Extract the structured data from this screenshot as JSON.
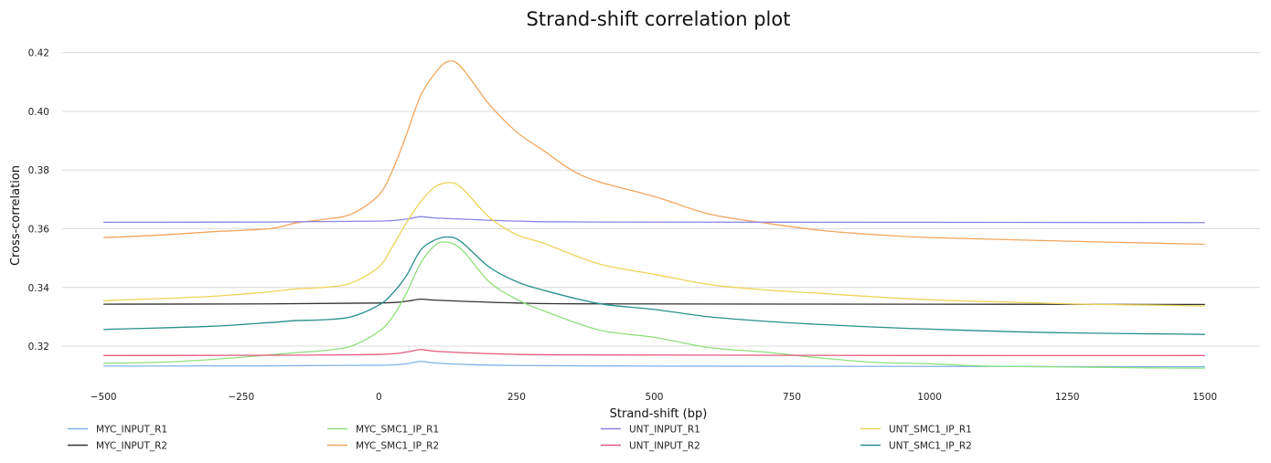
{
  "chart_data": {
    "type": "line",
    "title": "Strand-shift correlation plot",
    "xlabel": "Strand-shift (bp)",
    "ylabel": "Cross-correlation",
    "xlim": [
      -575,
      1600
    ],
    "ylim": [
      0.3085,
      0.4255
    ],
    "xticks": [
      -500,
      -250,
      0,
      250,
      500,
      750,
      1000,
      1250,
      1500
    ],
    "xtick_labels": [
      "−500",
      "−250",
      "0",
      "250",
      "500",
      "750",
      "1000",
      "1250",
      "1500"
    ],
    "yticks": [
      0.32,
      0.34,
      0.36,
      0.38,
      0.4,
      0.42
    ],
    "ytick_labels": [
      "0.32",
      "0.34",
      "0.36",
      "0.38",
      "0.40",
      "0.42"
    ],
    "grid": "horizontal",
    "legend_position": "bottom",
    "series": [
      {
        "name": "MYC_INPUT_R1",
        "color": "#7eb4e8",
        "x": [
          -500,
          -200,
          0,
          50,
          75,
          100,
          150,
          250,
          500,
          1000,
          1500
        ],
        "y": [
          0.3132,
          0.3133,
          0.3135,
          0.314,
          0.3148,
          0.3143,
          0.3138,
          0.3134,
          0.3132,
          0.3131,
          0.313
        ]
      },
      {
        "name": "MYC_INPUT_R2",
        "color": "#333333",
        "x": [
          -500,
          -200,
          0,
          50,
          75,
          100,
          150,
          250,
          400,
          1000,
          1500
        ],
        "y": [
          0.3343,
          0.3344,
          0.3347,
          0.3353,
          0.336,
          0.3357,
          0.3353,
          0.3347,
          0.3344,
          0.3343,
          0.3342
        ]
      },
      {
        "name": "MYC_SMC1_IP_R1",
        "color": "#8ee07a",
        "x": [
          -500,
          -400,
          -300,
          -200,
          -150,
          -100,
          -50,
          0,
          25,
          50,
          75,
          100,
          120,
          150,
          200,
          250,
          300,
          400,
          500,
          600,
          700,
          800,
          900,
          1000,
          1100,
          1200,
          1300,
          1400,
          1500
        ],
        "y": [
          0.3142,
          0.3145,
          0.3155,
          0.317,
          0.3178,
          0.3185,
          0.32,
          0.325,
          0.33,
          0.338,
          0.348,
          0.354,
          0.3555,
          0.353,
          0.342,
          0.336,
          0.332,
          0.3255,
          0.323,
          0.3195,
          0.318,
          0.316,
          0.3145,
          0.314,
          0.3132,
          0.313,
          0.3128,
          0.3126,
          0.3125
        ]
      },
      {
        "name": "MYC_SMC1_IP_R2",
        "color": "#f2a55c",
        "x": [
          -500,
          -400,
          -300,
          -200,
          -150,
          -100,
          -50,
          0,
          25,
          50,
          75,
          100,
          125,
          150,
          200,
          250,
          300,
          350,
          400,
          500,
          600,
          700,
          800,
          900,
          1000,
          1200,
          1500
        ],
        "y": [
          0.357,
          0.3578,
          0.359,
          0.36,
          0.362,
          0.3632,
          0.365,
          0.3715,
          0.38,
          0.392,
          0.405,
          0.4125,
          0.417,
          0.415,
          0.4025,
          0.393,
          0.3865,
          0.38,
          0.376,
          0.371,
          0.365,
          0.362,
          0.3595,
          0.358,
          0.357,
          0.356,
          0.3547
        ]
      },
      {
        "name": "UNT_INPUT_R1",
        "color": "#8a86e2",
        "x": [
          -500,
          -200,
          0,
          50,
          75,
          100,
          150,
          250,
          400,
          1000,
          1500
        ],
        "y": [
          0.3622,
          0.3623,
          0.3626,
          0.3633,
          0.3641,
          0.3637,
          0.3633,
          0.3626,
          0.3623,
          0.3622,
          0.3621
        ]
      },
      {
        "name": "UNT_INPUT_R2",
        "color": "#e45a7c",
        "x": [
          -500,
          -200,
          0,
          50,
          75,
          100,
          150,
          250,
          400,
          1000,
          1500
        ],
        "y": [
          0.3168,
          0.3169,
          0.3172,
          0.318,
          0.3188,
          0.3183,
          0.3178,
          0.3172,
          0.317,
          0.3168,
          0.3168
        ]
      },
      {
        "name": "UNT_SMC1_IP_R1",
        "color": "#eed358",
        "x": [
          -500,
          -400,
          -300,
          -200,
          -150,
          -100,
          -50,
          0,
          25,
          50,
          75,
          100,
          125,
          150,
          200,
          250,
          300,
          400,
          500,
          600,
          700,
          800,
          900,
          1000,
          1100,
          1200,
          1300,
          1400,
          1500
        ],
        "y": [
          0.3355,
          0.3362,
          0.337,
          0.3385,
          0.3395,
          0.34,
          0.3415,
          0.347,
          0.354,
          0.362,
          0.369,
          0.374,
          0.3757,
          0.374,
          0.364,
          0.358,
          0.355,
          0.348,
          0.3445,
          0.341,
          0.3392,
          0.338,
          0.3368,
          0.3358,
          0.3352,
          0.3347,
          0.3342,
          0.334,
          0.3337
        ]
      },
      {
        "name": "UNT_SMC1_IP_R2",
        "color": "#27908a",
        "x": [
          -500,
          -400,
          -300,
          -200,
          -150,
          -100,
          -50,
          0,
          25,
          50,
          75,
          100,
          125,
          150,
          200,
          250,
          300,
          400,
          500,
          600,
          700,
          800,
          900,
          1000,
          1100,
          1200,
          1300,
          1400,
          1500
        ],
        "y": [
          0.3257,
          0.3262,
          0.3268,
          0.328,
          0.3287,
          0.329,
          0.33,
          0.334,
          0.338,
          0.344,
          0.3525,
          0.356,
          0.3572,
          0.3555,
          0.347,
          0.342,
          0.339,
          0.3345,
          0.3325,
          0.33,
          0.3285,
          0.3274,
          0.3265,
          0.3258,
          0.3252,
          0.3247,
          0.3244,
          0.3242,
          0.324
        ]
      }
    ]
  }
}
